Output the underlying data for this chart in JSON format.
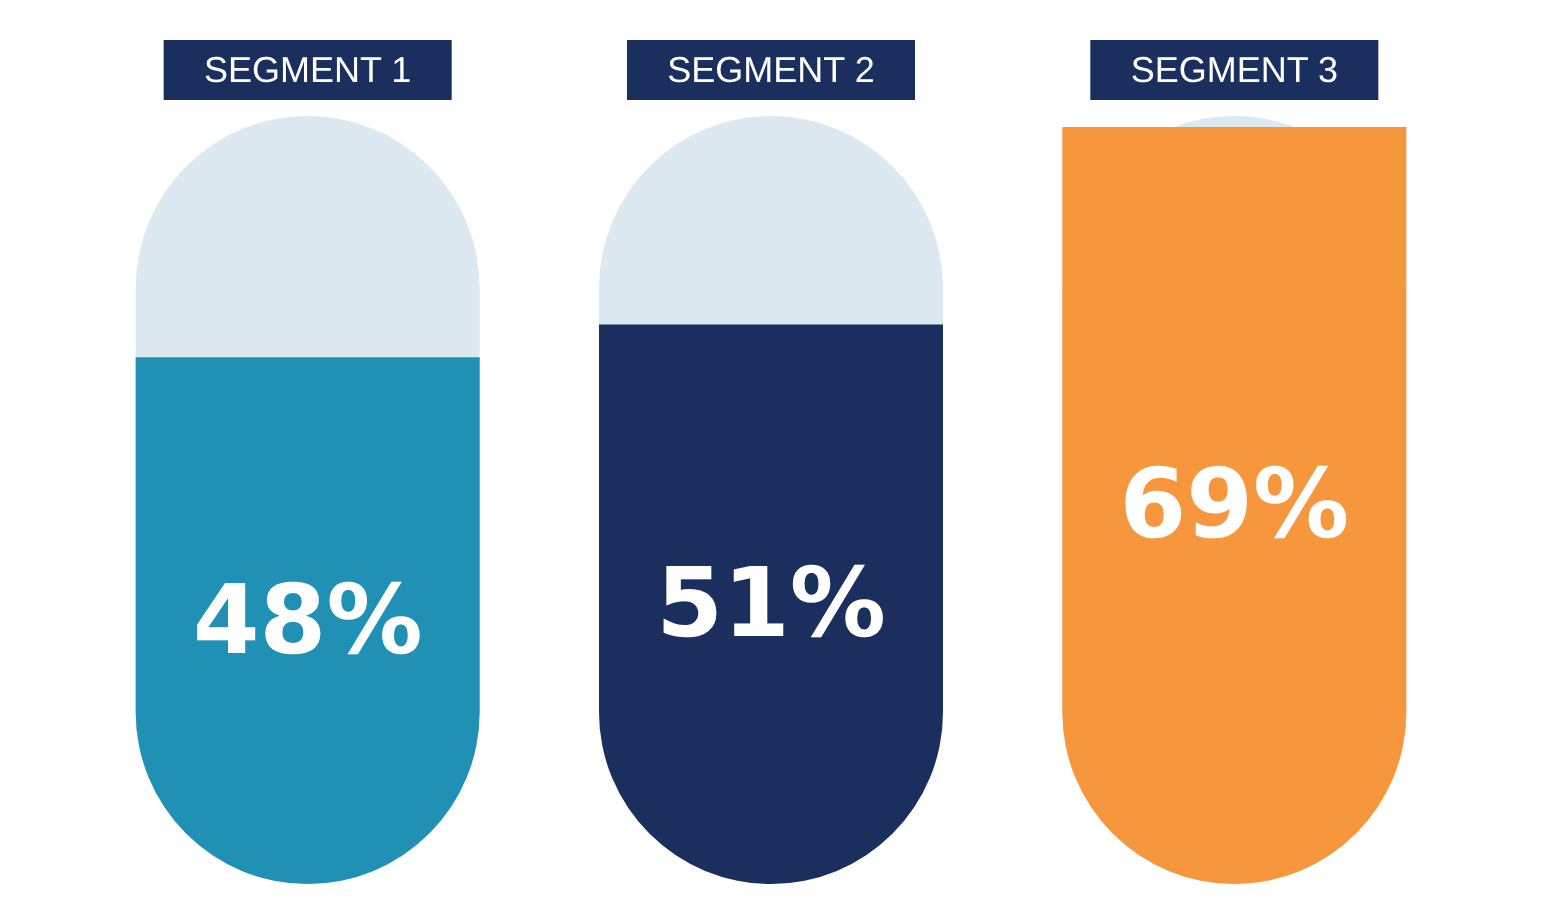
{
  "chart_data": {
    "type": "bar",
    "categories": [
      "SEGMENT 1",
      "SEGMENT 2",
      "SEGMENT 3"
    ],
    "values": [
      48,
      51,
      69
    ],
    "value_labels": [
      "48%",
      "51%",
      "69%"
    ],
    "colors": [
      "#2190b5",
      "#1b2f5e",
      "#f7973d"
    ],
    "tick_labels": "x"
  }
}
